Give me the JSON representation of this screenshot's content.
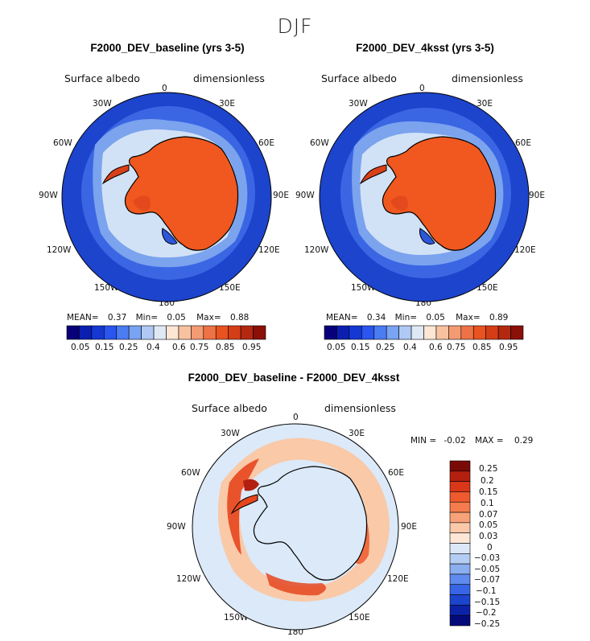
{
  "figure": {
    "season": "DJF",
    "colors": {
      "ocean_low": "#1d44cc",
      "ocean_mid": "#3b68e6",
      "ice_edge": "#c5dcf6",
      "land_high": "#f0581f",
      "land_dark": "#d8401a",
      "diff_zero": "#dbe9f8",
      "diff_pos": "#f9c9a8",
      "diff_strong": "#e5461e"
    },
    "panels": [
      {
        "title": "F2000_DEV_baseline (yrs 3-5)",
        "variable": "Surface albedo",
        "units": "dimensionless",
        "stats": {
          "mean_label": "MEAN=",
          "mean": "0.37",
          "min_label": "Min=",
          "min": "0.05",
          "max_label": "Max=",
          "max": "0.88"
        }
      },
      {
        "title": "F2000_DEV_4ksst (yrs 3-5)",
        "variable": "Surface albedo",
        "units": "dimensionless",
        "stats": {
          "mean_label": "MEAN=",
          "mean": "0.34",
          "min_label": "Min=",
          "min": "0.05",
          "max_label": "Max=",
          "max": "0.89"
        }
      }
    ],
    "longitude_labels": [
      "0",
      "30E",
      "60E",
      "90E",
      "120E",
      "150E",
      "180",
      "150W",
      "120W",
      "90W",
      "60W",
      "30W"
    ],
    "colorbar": {
      "colors": [
        "#08007a",
        "#0a1fb0",
        "#1537d4",
        "#2a55ee",
        "#4a7cf2",
        "#79a3f3",
        "#afc9f4",
        "#dfe9f6",
        "#fde6d3",
        "#f8c2a0",
        "#f39b72",
        "#ee7245",
        "#e9531f",
        "#d53d16",
        "#b42810",
        "#8a1008"
      ],
      "tick_labels": [
        "0.05",
        "0.15",
        "0.25",
        "0.4",
        "0.6",
        "0.75",
        "0.85",
        "0.95"
      ]
    },
    "difference": {
      "title": "F2000_DEV_baseline - F2000_DEV_4ksst",
      "variable": "Surface albedo",
      "units": "dimensionless",
      "min_label": "MIN =",
      "min": "-0.02",
      "max_label": "MAX =",
      "max": "0.29",
      "levels": [
        "0.25",
        "0.2",
        "0.15",
        "0.1",
        "0.07",
        "0.05",
        "0.03",
        "0",
        "−0.03",
        "−0.05",
        "−0.07",
        "−0.1",
        "−0.15",
        "−0.2",
        "−0.25"
      ],
      "level_colors": [
        "#7a0a06",
        "#b32010",
        "#d9361a",
        "#ee5a2e",
        "#f47c4e",
        "#f8a27a",
        "#fbc9aa",
        "#fde6d6",
        "#dbe7f6",
        "#b4cdf2",
        "#8aaef0",
        "#5f8aee",
        "#3765e6",
        "#1d44cc",
        "#0c22a6",
        "#050a7a"
      ]
    }
  }
}
